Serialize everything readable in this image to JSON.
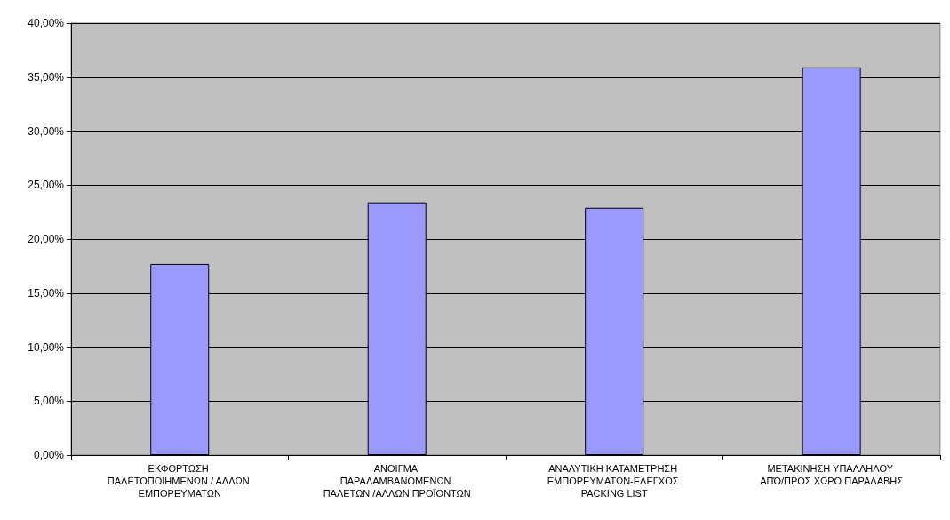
{
  "chart_data": {
    "type": "bar",
    "categories": [
      "ΕΚΦΟΡΤΩΣΗ ΠΑΛΕΤΟΠΟΙΗΜΕΝΩΝ / ΑΛΛΩΝ ΕΜΠΟΡΕΥΜΑΤΩΝ",
      "ΑΝΟΙΓΜΑ ΠΑΡΑΛΑΜΒΑΝΟΜΕΝΩΝ ΠΑΛΕΤΩΝ /ΑΛΛΩΝ ΠΡΟΪΟΝΤΩΝ",
      "ΑΝΑΛΥΤΙΚΗ ΚΑΤΑΜΕΤΡΗΣΗ ΕΜΠΟΡΕΥΜΑΤΩΝ-ΕΛΕΓΧΟΣ PACKING LIST",
      "ΜΕΤΑΚΙΝΗΣΗ ΥΠΑΛΛΗΛΟΥ ΑΠΌ/ΠΡΟΣ ΧΩΡΟ ΠΑΡΑΛΑΒΗΣ"
    ],
    "values": [
      17.7,
      23.4,
      22.9,
      35.9
    ],
    "color": "#9999ff",
    "ylim": [
      0,
      40
    ],
    "yticks": [
      {
        "value": 0,
        "label": "0,00%"
      },
      {
        "value": 5,
        "label": "5,00%"
      },
      {
        "value": 10,
        "label": "10,00%"
      },
      {
        "value": 15,
        "label": "15,00%"
      },
      {
        "value": 20,
        "label": "20,00%"
      },
      {
        "value": 25,
        "label": "25,00%"
      },
      {
        "value": 30,
        "label": "30,00%"
      },
      {
        "value": 35,
        "label": "35,00%"
      },
      {
        "value": 40,
        "label": "40,00%"
      }
    ],
    "grid": "y"
  }
}
